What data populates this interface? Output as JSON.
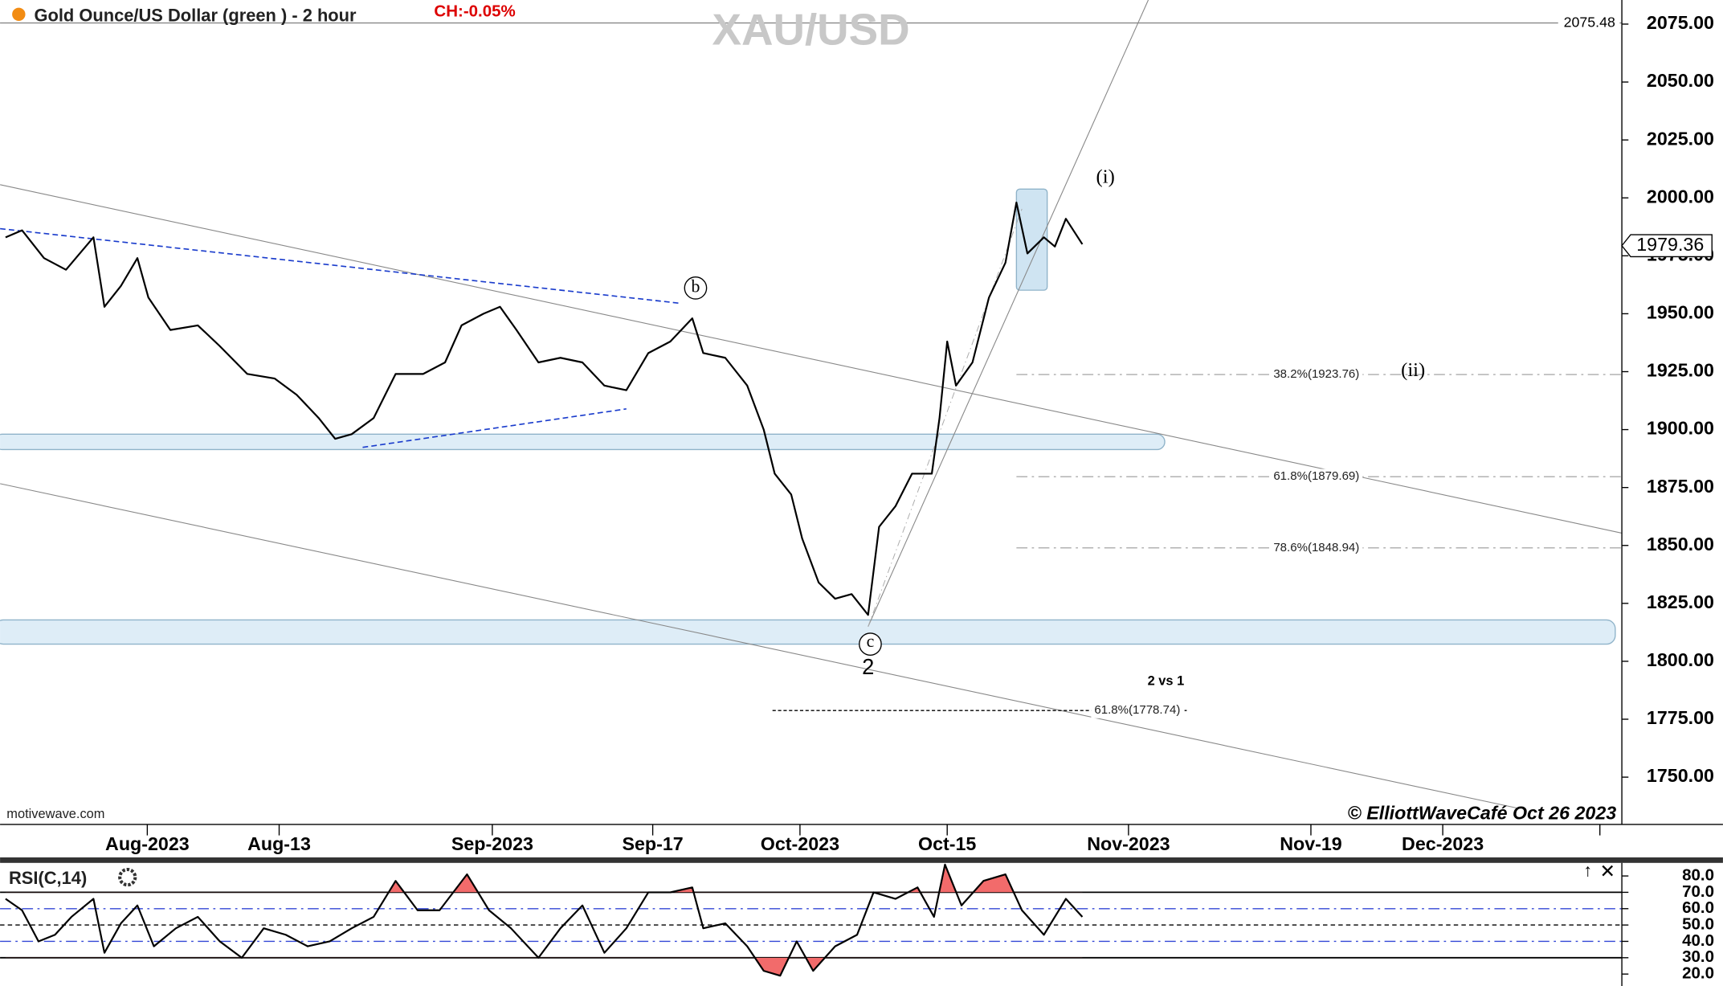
{
  "chart_data": [
    {
      "type": "line",
      "title": "Gold Ounce/US Dollar (green ) - 2 hour",
      "change_label": "CH:-0.05%",
      "watermark": "XAU/USD",
      "source": "motivewave.com",
      "copyright": "© ElliottWaveCafé Oct 26 2023",
      "last_price": 1979.36,
      "level_line": 2075.48,
      "fib_levels": [
        {
          "value": 1923.76,
          "label": "38.2%(1923.76)"
        },
        {
          "value": 1879.69,
          "label": "61.8%(1879.69)"
        },
        {
          "value": 1848.94,
          "label": "78.6%(1848.94)"
        },
        {
          "value": 1778.74,
          "label": "61.8%(1778.74)"
        }
      ],
      "note": "2 vs 1",
      "wave_labels": [
        "(i)",
        "(ii)",
        "b",
        "c",
        "2"
      ],
      "series": [
        {
          "color": "#000000",
          "x": [
            0.5,
            2,
            4,
            6,
            8.5,
            9.5,
            11,
            12.5,
            13.5,
            15.5,
            18,
            20,
            22.5,
            25,
            27,
            29,
            30.5,
            32,
            34,
            36,
            38.5,
            40.5,
            42,
            44,
            45.5,
            47,
            49,
            51,
            53,
            55,
            57,
            59,
            61,
            63,
            64,
            66,
            68,
            69.5,
            70.5,
            72,
            73,
            74.5,
            76,
            77.5,
            79,
            80,
            81.5,
            83,
            84.8,
            85.5,
            86.2,
            87,
            88.5,
            90,
            91.5,
            92.5,
            93.5,
            95,
            96,
            97,
            98.5
          ],
          "values": [
            1983,
            1986,
            1974,
            1969,
            1983,
            1953,
            1962,
            1974,
            1957,
            1943,
            1945,
            1936,
            1924,
            1922,
            1915,
            1905,
            1896,
            1898,
            1905,
            1924,
            1924,
            1929,
            1945,
            1950,
            1953,
            1943,
            1929,
            1931,
            1929,
            1919,
            1917,
            1933,
            1938,
            1948,
            1933,
            1931,
            1919,
            1900,
            1881,
            1872,
            1853,
            1834,
            1827,
            1829,
            1820,
            1858,
            1867,
            1881,
            1881,
            1905,
            1938,
            1919,
            1929,
            1957,
            1972,
            1998,
            1976,
            1983,
            1979,
            1991,
            1980
          ]
        }
      ],
      "xlim": [
        0,
        147.6
      ],
      "xticks": [
        {
          "value": 13.4,
          "label": "Aug-2023"
        },
        {
          "value": 25.4,
          "label": "Aug-13"
        },
        {
          "value": 44.8,
          "label": "Sep-2023"
        },
        {
          "value": 59.4,
          "label": "Sep-17"
        },
        {
          "value": 72.8,
          "label": "Oct-2023"
        },
        {
          "value": 86.2,
          "label": "Oct-15"
        },
        {
          "value": 102.7,
          "label": "Nov-2023"
        },
        {
          "value": 119.3,
          "label": "Nov-19"
        },
        {
          "value": 131.3,
          "label": "Dec-2023"
        }
      ],
      "ylim": [
        1729.6,
        2085.4
      ],
      "yticks": [
        {
          "value": 1750,
          "label": "1750.00"
        },
        {
          "value": 1775,
          "label": "1775.00"
        },
        {
          "value": 1800,
          "label": "1800.00"
        },
        {
          "value": 1825,
          "label": "1825.00"
        },
        {
          "value": 1850,
          "label": "1850.00"
        },
        {
          "value": 1875,
          "label": "1875.00"
        },
        {
          "value": 1900,
          "label": "1900.00"
        },
        {
          "value": 1925,
          "label": "1925.00"
        },
        {
          "value": 1950,
          "label": "1950.00"
        },
        {
          "value": 1975,
          "label": "1975.00"
        },
        {
          "value": 2000,
          "label": "2000.00"
        },
        {
          "value": 2025,
          "label": "2025.00"
        },
        {
          "value": 2050,
          "label": "2050.00"
        },
        {
          "value": 2075,
          "label": "2075.00"
        }
      ]
    },
    {
      "type": "line",
      "title": "RSI(C,14)",
      "series": [
        {
          "color": "#000000",
          "x": [
            0.5,
            2,
            3.5,
            5,
            6.5,
            8.5,
            9.5,
            11,
            12.5,
            14,
            16,
            18,
            20,
            22,
            24,
            26,
            28,
            30,
            32,
            34,
            36,
            38,
            40,
            42.5,
            44.5,
            46.5,
            49,
            51,
            53,
            55,
            57,
            59,
            61,
            63,
            64,
            66,
            68,
            69.5,
            71,
            72.5,
            74,
            76,
            78,
            79.5,
            81.5,
            83.5,
            85,
            86,
            87.5,
            89.5,
            91.5,
            93,
            95,
            97,
            98.5
          ],
          "values": [
            66,
            59,
            40,
            44,
            55,
            66,
            33,
            51,
            62,
            37,
            48,
            55,
            40,
            30,
            48,
            44,
            37,
            40,
            48,
            55,
            77,
            59,
            59,
            81,
            59,
            48,
            30,
            48,
            62,
            33,
            48,
            70,
            70,
            73,
            48,
            51,
            37,
            22,
            19,
            40,
            22,
            37,
            44,
            70,
            66,
            73,
            55,
            87,
            62,
            77,
            81,
            59,
            44,
            66,
            55
          ]
        }
      ],
      "xlim": [
        0,
        147.6
      ],
      "ylim": [
        12.7,
        88
      ],
      "yticks": [
        {
          "value": 20,
          "label": "20.0"
        },
        {
          "value": 30,
          "label": "30.0"
        },
        {
          "value": 40,
          "label": "40.0"
        },
        {
          "value": 50,
          "label": "50.0"
        },
        {
          "value": 60,
          "label": "60.0"
        },
        {
          "value": 70,
          "label": "70.0"
        },
        {
          "value": 80,
          "label": "80.0"
        }
      ]
    }
  ]
}
